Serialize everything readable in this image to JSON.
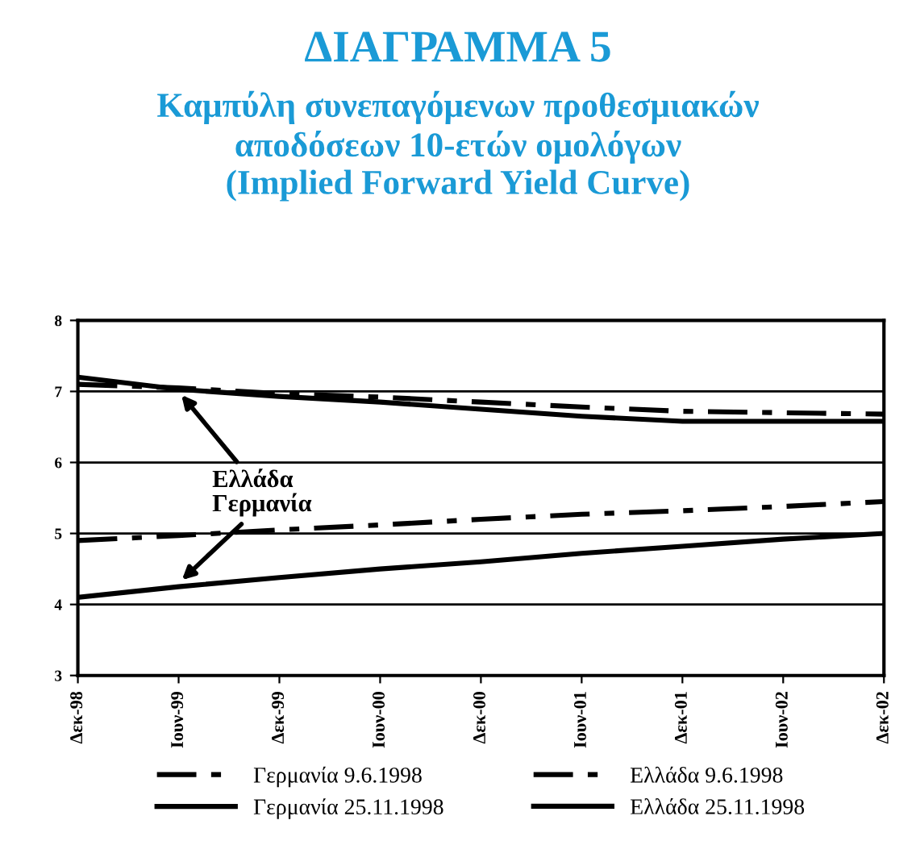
{
  "chart_data": {
    "type": "line",
    "title": "ΔΙΑΓΡΑΜΜΑ 5",
    "subtitle": "Καμπύλη συνεπαγόμενων προθεσμιακών\nαποδόσεων 10-ετών ομολόγων\n(Implied Forward Yield Curve)",
    "categories": [
      "Δεκ-98",
      "Ιουν-99",
      "Δεκ-99",
      "Ιουν-00",
      "Δεκ-00",
      "Ιουν-01",
      "Δεκ-01",
      "Ιουν-02",
      "Δεκ-02"
    ],
    "series": [
      {
        "name": "Γερμανία 9.6.1998",
        "color": "#000000",
        "line_style": "dashed",
        "values": [
          4.9,
          4.97,
          5.05,
          5.12,
          5.2,
          5.27,
          5.32,
          5.38,
          5.45
        ]
      },
      {
        "name": "Γερμανία 25.11.1998",
        "color": "#000000",
        "line_style": "solid",
        "values": [
          4.1,
          4.25,
          4.38,
          4.5,
          4.6,
          4.72,
          4.82,
          4.92,
          5.0
        ]
      },
      {
        "name": "Ελλάδα 9.6.1998",
        "color": "#000000",
        "line_style": "dashed",
        "values": [
          7.1,
          7.05,
          6.97,
          6.92,
          6.85,
          6.78,
          6.72,
          6.7,
          6.68
        ]
      },
      {
        "name": "Ελλάδα 25.11.1998",
        "color": "#000000",
        "line_style": "solid",
        "values": [
          7.2,
          7.03,
          6.93,
          6.85,
          6.75,
          6.65,
          6.58,
          6.58,
          6.58
        ]
      }
    ],
    "ylim": [
      3,
      8
    ],
    "yticks": [
      3,
      4,
      5,
      6,
      7,
      8
    ],
    "grid": "y",
    "legend": "bottom",
    "marker": "none",
    "annotations": [
      {
        "text": "Ελλάδα",
        "x": "Ιουν-99",
        "y": 7.0
      },
      {
        "text": "Γερμανία",
        "x": "Ιουν-99",
        "y": 4.3
      }
    ]
  }
}
